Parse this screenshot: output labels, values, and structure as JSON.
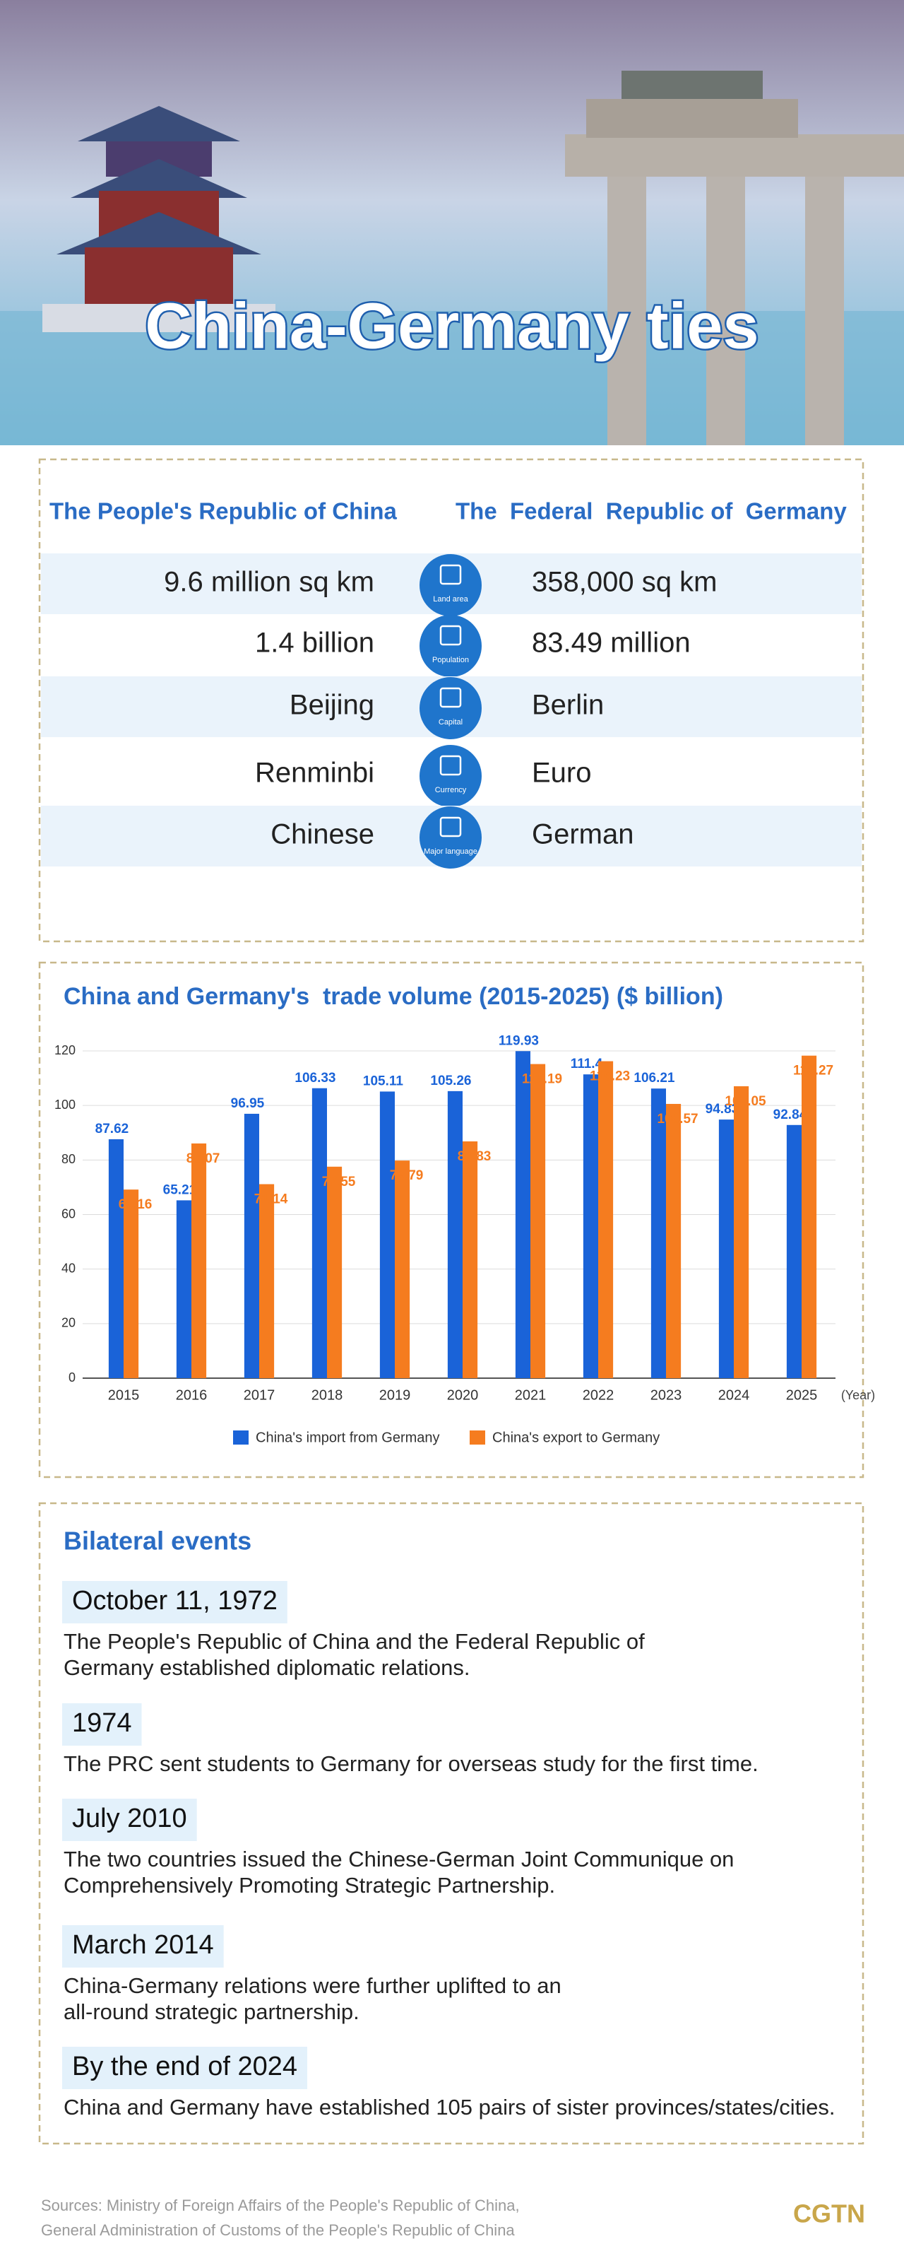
{
  "header": {
    "title": "China-Germany ties"
  },
  "comparison": {
    "headers": [
      "The People's Republic of China",
      "The  Federal  Republic of  Germany"
    ],
    "rows": [
      {
        "china": "9.6 million sq km",
        "icon": "Land area",
        "germany": "358,000 sq km"
      },
      {
        "china": "1.4 billion",
        "icon": "Population",
        "germany": "83.49 million"
      },
      {
        "china": "Beijing",
        "icon": "Capital",
        "germany": "Berlin"
      },
      {
        "china": "Renminbi",
        "icon": "Currency",
        "germany": "Euro"
      },
      {
        "china": "Chinese",
        "icon": "Major language",
        "germany": "German"
      }
    ]
  },
  "chart_data": {
    "type": "bar",
    "title": "China and Germany's  trade volume (2015-2025) ($ billion)",
    "categories": [
      "2015",
      "2016",
      "2017",
      "2018",
      "2019",
      "2020",
      "2021",
      "2022",
      "2023",
      "2024",
      "2025"
    ],
    "x_label": "(Year)",
    "series": [
      {
        "name": "China's import from Germany",
        "color": "#1a63d8",
        "values": [
          87.62,
          65.21,
          96.95,
          106.33,
          105.11,
          105.26,
          119.93,
          111.4,
          106.21,
          94.83,
          92.84
        ]
      },
      {
        "name": "China's export to Germany",
        "color": "#f57c1f",
        "values": [
          69.16,
          86.07,
          71.14,
          77.55,
          79.79,
          86.83,
          115.19,
          116.23,
          100.57,
          107.05,
          118.27
        ]
      }
    ],
    "ylim": [
      0,
      120
    ],
    "yticks": [
      0,
      20,
      40,
      60,
      80,
      100,
      120
    ],
    "grid": true,
    "legend": "bottom"
  },
  "events": {
    "heading": "Bilateral events",
    "items": [
      {
        "date": "October 11, 1972",
        "text": [
          "The People's Republic of China and the Federal Republic of",
          "Germany established diplomatic relations."
        ]
      },
      {
        "date": "1974",
        "text": [
          "The PRC sent students to Germany for overseas study for the first time."
        ]
      },
      {
        "date": "July 2010",
        "text": [
          "The two countries issued  the Chinese-German Joint Communique on",
          "Comprehensively Promoting Strategic Partnership."
        ]
      },
      {
        "date": "March 2014",
        "text": [
          "China-Germany relations were further uplifted to an",
          "all-round strategic partnership."
        ]
      },
      {
        "date": "By the end of 2024",
        "text": [
          "China and Germany have established 105 pairs of sister provinces/states/cities."
        ]
      }
    ]
  },
  "footer": {
    "sources": [
      "Sources: Ministry of Foreign Affairs of the People's Republic of China,",
      "General Administration of Customs of the People's Republic of China"
    ],
    "logo": "CGTN"
  }
}
